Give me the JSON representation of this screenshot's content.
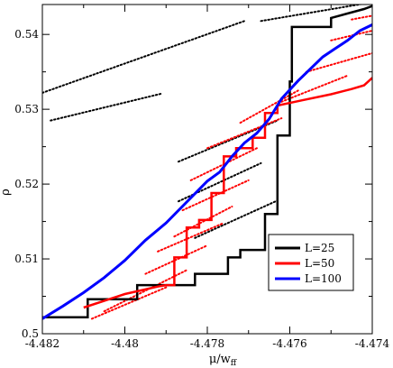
{
  "chart_data": {
    "type": "line",
    "title": "",
    "xlabel": "μ/w",
    "xlabel_sub": "ff",
    "ylabel": "ρ",
    "xlim": [
      -4.482,
      -4.474
    ],
    "ylim": [
      0.5,
      0.544
    ],
    "x_ticks": [
      -4.482,
      -4.48,
      -4.478,
      -4.476,
      -4.474
    ],
    "x_tick_labels": [
      "-4.482",
      "-4.48",
      "-4.478",
      "-4.476",
      "-4.474"
    ],
    "y_ticks": [
      0.5,
      0.51,
      0.52,
      0.53,
      0.54
    ],
    "y_tick_labels": [
      "0.5",
      "0.51",
      "0.52",
      "0.53",
      "0.54"
    ],
    "grid": false,
    "legend": "bottom-right",
    "series": [
      {
        "name": "L=25",
        "color": "#000000",
        "style": "step",
        "x": [
          -4.482,
          -4.4809,
          -4.4809,
          -4.4797,
          -4.4797,
          -4.4783,
          -4.4783,
          -4.4775,
          -4.4775,
          -4.4772,
          -4.4772,
          -4.4766,
          -4.4766,
          -4.4763,
          -4.4763,
          -4.476,
          -4.476,
          -4.47595,
          -4.47595,
          -4.475,
          -4.475,
          -4.4742,
          -4.474
        ],
        "y": [
          0.5022,
          0.5022,
          0.5046,
          0.5046,
          0.5065,
          0.5065,
          0.508,
          0.508,
          0.5102,
          0.5102,
          0.5112,
          0.5112,
          0.516,
          0.516,
          0.5265,
          0.5265,
          0.5337,
          0.5337,
          0.541,
          0.541,
          0.5422,
          0.5434,
          0.5438
        ]
      },
      {
        "name": "L=50",
        "color": "#ff0000",
        "style": "step",
        "x": [
          -4.481,
          -4.48,
          -4.4796,
          -4.4792,
          -4.479,
          -4.4788,
          -4.4788,
          -4.4785,
          -4.4785,
          -4.4782,
          -4.4782,
          -4.4779,
          -4.4779,
          -4.4776,
          -4.4776,
          -4.4773,
          -4.4773,
          -4.4769,
          -4.4769,
          -4.4766,
          -4.4766,
          -4.4763,
          -4.4763,
          -4.4757,
          -4.475,
          -4.4745,
          -4.4742,
          -4.474
        ],
        "y": [
          0.5035,
          0.5053,
          0.5058,
          0.5063,
          0.5065,
          0.5065,
          0.5102,
          0.5102,
          0.5142,
          0.5142,
          0.5152,
          0.5152,
          0.5188,
          0.5188,
          0.5237,
          0.5237,
          0.5248,
          0.5248,
          0.5262,
          0.5262,
          0.5295,
          0.5295,
          0.5305,
          0.5312,
          0.532,
          0.5327,
          0.5332,
          0.5342
        ]
      },
      {
        "name": "L=100",
        "color": "#0000ff",
        "style": "line",
        "x": [
          -4.482,
          -4.4815,
          -4.481,
          -4.4805,
          -4.48,
          -4.4795,
          -4.479,
          -4.4785,
          -4.478,
          -4.4777,
          -4.4774,
          -4.4771,
          -4.4768,
          -4.4765,
          -4.4762,
          -4.4758,
          -4.4755,
          -4.4752,
          -4.4749,
          -4.4746,
          -4.4743,
          -4.474
        ],
        "y": [
          0.502,
          0.5037,
          0.5055,
          0.5075,
          0.5098,
          0.5125,
          0.5148,
          0.5176,
          0.5204,
          0.5216,
          0.5237,
          0.5255,
          0.5268,
          0.5287,
          0.5314,
          0.5338,
          0.5354,
          0.537,
          0.5381,
          0.5392,
          0.5405,
          0.5413
        ]
      }
    ],
    "dotted_lines": [
      {
        "color": "#000000",
        "x": [
          -4.482,
          -4.4771
        ],
        "y": [
          0.5322,
          0.5418
        ]
      },
      {
        "color": "#000000",
        "x": [
          -4.4818,
          -4.4791
        ],
        "y": [
          0.5285,
          0.5321
        ]
      },
      {
        "color": "#000000",
        "x": [
          -4.4767,
          -4.474
        ],
        "y": [
          0.5418,
          0.5443
        ]
      },
      {
        "color": "#000000",
        "x": [
          -4.4787,
          -4.4763
        ],
        "y": [
          0.523,
          0.5285
        ]
      },
      {
        "color": "#000000",
        "x": [
          -4.4787,
          -4.4767
        ],
        "y": [
          0.5177,
          0.5228
        ]
      },
      {
        "color": "#000000",
        "x": [
          -4.4783,
          -4.4763
        ],
        "y": [
          0.5128,
          0.5178
        ]
      },
      {
        "color": "#ff0000",
        "x": [
          -4.4772,
          -4.4758
        ],
        "y": [
          0.5282,
          0.5325
        ]
      },
      {
        "color": "#ff0000",
        "x": [
          -4.478,
          -4.4762
        ],
        "y": [
          0.5248,
          0.5288
        ]
      },
      {
        "color": "#ff0000",
        "x": [
          -4.4784,
          -4.4768
        ],
        "y": [
          0.5205,
          0.5248
        ]
      },
      {
        "color": "#ff0000",
        "x": [
          -4.4786,
          -4.477
        ],
        "y": [
          0.5165,
          0.5205
        ]
      },
      {
        "color": "#ff0000",
        "x": [
          -4.4788,
          -4.4774
        ],
        "y": [
          0.513,
          0.517
        ]
      },
      {
        "color": "#ff0000",
        "x": [
          -4.4792,
          -4.4776
        ],
        "y": [
          0.511,
          0.5148
        ]
      },
      {
        "color": "#ff0000",
        "x": [
          -4.4795,
          -4.478
        ],
        "y": [
          0.508,
          0.5118
        ]
      },
      {
        "color": "#ff0000",
        "x": [
          -4.4805,
          -4.4785
        ],
        "y": [
          0.503,
          0.5085
        ]
      },
      {
        "color": "#ff0000",
        "x": [
          -4.4808,
          -4.479
        ],
        "y": [
          0.502,
          0.5062
        ]
      },
      {
        "color": "#ff0000",
        "x": [
          -4.4762,
          -4.4746
        ],
        "y": [
          0.531,
          0.5345
        ]
      },
      {
        "color": "#ff0000",
        "x": [
          -4.4756,
          -4.474
        ],
        "y": [
          0.535,
          0.5375
        ]
      },
      {
        "color": "#ff0000",
        "x": [
          -4.475,
          -4.474
        ],
        "y": [
          0.5392,
          0.5405
        ]
      },
      {
        "color": "#ff0000",
        "x": [
          -4.4745,
          -4.474
        ],
        "y": [
          0.542,
          0.5425
        ]
      }
    ]
  }
}
